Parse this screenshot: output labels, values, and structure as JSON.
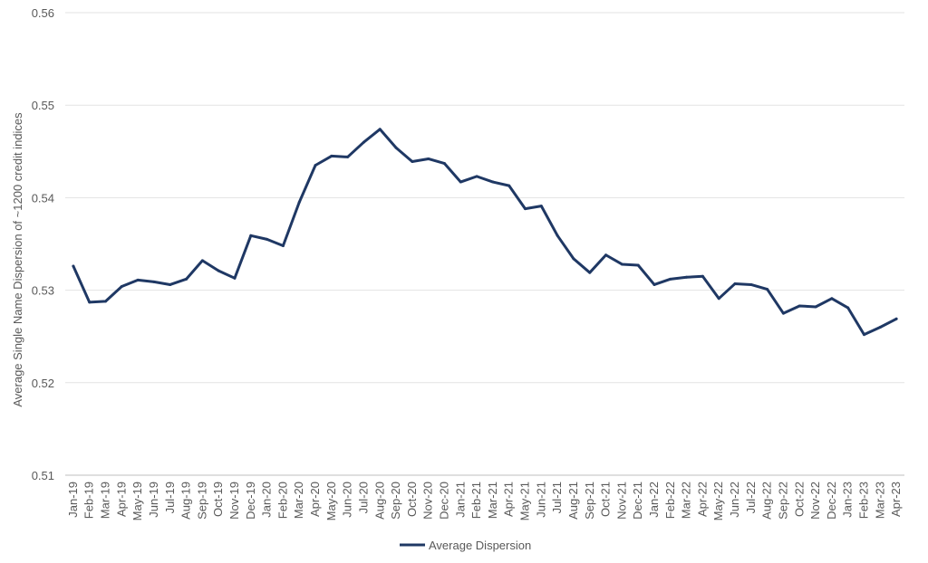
{
  "chart_data": {
    "type": "line",
    "title": "",
    "xlabel": "",
    "ylabel": "Average Single Name Dispersion of ~1200 credit indices",
    "ylim": [
      0.51,
      0.56
    ],
    "yticks": [
      "0.51",
      "0.52",
      "0.53",
      "0.54",
      "0.55",
      "0.56"
    ],
    "grid": "horizontal",
    "legend_position": "bottom",
    "categories": [
      "Jan-19",
      "Feb-19",
      "Mar-19",
      "Apr-19",
      "May-19",
      "Jun-19",
      "Jul-19",
      "Aug-19",
      "Sep-19",
      "Oct-19",
      "Nov-19",
      "Dec-19",
      "Jan-20",
      "Feb-20",
      "Mar-20",
      "Apr-20",
      "May-20",
      "Jun-20",
      "Jul-20",
      "Aug-20",
      "Sep-20",
      "Oct-20",
      "Nov-20",
      "Dec-20",
      "Jan-21",
      "Feb-21",
      "Mar-21",
      "Apr-21",
      "May-21",
      "Jun-21",
      "Jul-21",
      "Aug-21",
      "Sep-21",
      "Oct-21",
      "Nov-21",
      "Dec-21",
      "Jan-22",
      "Feb-22",
      "Mar-22",
      "Apr-22",
      "May-22",
      "Jun-22",
      "Jul-22",
      "Aug-22",
      "Sep-22",
      "Oct-22",
      "Nov-22",
      "Dec-22",
      "Jan-23",
      "Feb-23",
      "Mar-23",
      "Apr-23"
    ],
    "series": [
      {
        "name": "Average Dispersion",
        "color": "#1f3864",
        "values": [
          0.5326,
          0.5287,
          0.5288,
          0.5304,
          0.5311,
          0.5309,
          0.5306,
          0.5312,
          0.5332,
          0.5321,
          0.5313,
          0.5359,
          0.5355,
          0.5348,
          0.5395,
          0.5435,
          0.5445,
          0.5444,
          0.546,
          0.5474,
          0.5454,
          0.5439,
          0.5442,
          0.5437,
          0.5417,
          0.5423,
          0.5417,
          0.5413,
          0.5388,
          0.5391,
          0.5359,
          0.5334,
          0.5319,
          0.5338,
          0.5328,
          0.5327,
          0.5306,
          0.5312,
          0.5314,
          0.5315,
          0.5291,
          0.5307,
          0.5306,
          0.5301,
          0.5275,
          0.5283,
          0.5282,
          0.5291,
          0.5281,
          0.5252,
          0.526,
          0.5269
        ]
      }
    ]
  }
}
